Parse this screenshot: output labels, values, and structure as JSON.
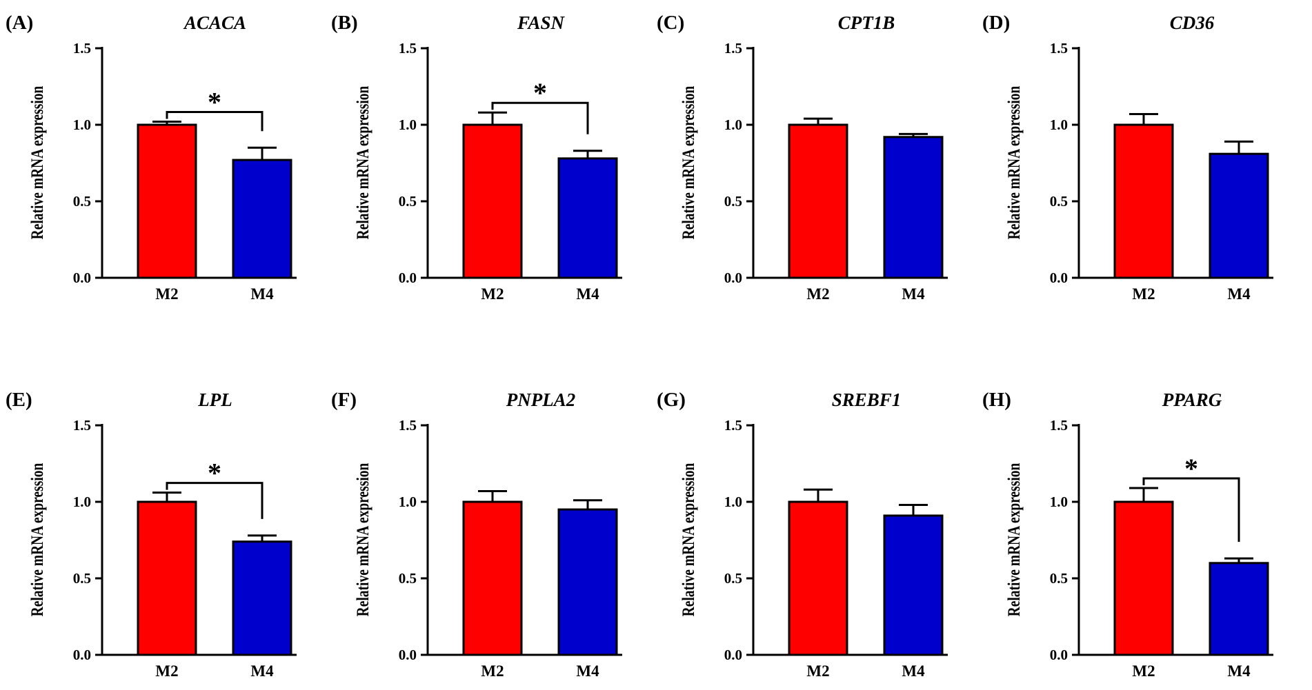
{
  "figure": {
    "ylabel": "Relative mRNA expression",
    "colors": {
      "M2": "#ff0000",
      "M4": "#0000cc",
      "axis": "#000000",
      "background": "#ffffff"
    }
  },
  "chart_data": [
    {
      "type": "bar",
      "panel": "(A)",
      "title": "ACACA",
      "xlabel": "",
      "ylabel": "Relative mRNA expression",
      "ylim": [
        0,
        1.5
      ],
      "yticks": [
        "0.0",
        "0.5",
        "1.0",
        "1.5"
      ],
      "categories": [
        "M2",
        "M4"
      ],
      "values": [
        1.0,
        0.77
      ],
      "errors": [
        0.02,
        0.08
      ],
      "significance": "*"
    },
    {
      "type": "bar",
      "panel": "(B)",
      "title": "FASN",
      "xlabel": "",
      "ylabel": "Relative mRNA expression",
      "ylim": [
        0,
        1.5
      ],
      "yticks": [
        "0.0",
        "0.5",
        "1.0",
        "1.5"
      ],
      "categories": [
        "M2",
        "M4"
      ],
      "values": [
        1.0,
        0.78
      ],
      "errors": [
        0.08,
        0.05
      ],
      "significance": "*"
    },
    {
      "type": "bar",
      "panel": "(C)",
      "title": "CPT1B",
      "xlabel": "",
      "ylabel": "Relative mRNA expression",
      "ylim": [
        0,
        1.5
      ],
      "yticks": [
        "0.0",
        "0.5",
        "1.0",
        "1.5"
      ],
      "categories": [
        "M2",
        "M4"
      ],
      "values": [
        1.0,
        0.92
      ],
      "errors": [
        0.04,
        0.02
      ],
      "significance": ""
    },
    {
      "type": "bar",
      "panel": "(D)",
      "title": "CD36",
      "xlabel": "",
      "ylabel": "Relative mRNA expression",
      "ylim": [
        0,
        1.5
      ],
      "yticks": [
        "0.0",
        "0.5",
        "1.0",
        "1.5"
      ],
      "categories": [
        "M2",
        "M4"
      ],
      "values": [
        1.0,
        0.81
      ],
      "errors": [
        0.07,
        0.08
      ],
      "significance": ""
    },
    {
      "type": "bar",
      "panel": "(E)",
      "title": "LPL",
      "xlabel": "",
      "ylabel": "Relative mRNA expression",
      "ylim": [
        0,
        1.5
      ],
      "yticks": [
        "0.0",
        "0.5",
        "1.0",
        "1.5"
      ],
      "categories": [
        "M2",
        "M4"
      ],
      "values": [
        1.0,
        0.74
      ],
      "errors": [
        0.06,
        0.04
      ],
      "significance": "*"
    },
    {
      "type": "bar",
      "panel": "(F)",
      "title": "PNPLA2",
      "xlabel": "",
      "ylabel": "Relative mRNA expression",
      "ylim": [
        0,
        1.5
      ],
      "yticks": [
        "0.0",
        "0.5",
        "1.0",
        "1.5"
      ],
      "categories": [
        "M2",
        "M4"
      ],
      "values": [
        1.0,
        0.95
      ],
      "errors": [
        0.07,
        0.06
      ],
      "significance": ""
    },
    {
      "type": "bar",
      "panel": "(G)",
      "title": "SREBF1",
      "xlabel": "",
      "ylabel": "Relative mRNA expression",
      "ylim": [
        0,
        1.5
      ],
      "yticks": [
        "0.0",
        "0.5",
        "1.0",
        "1.5"
      ],
      "categories": [
        "M2",
        "M4"
      ],
      "values": [
        1.0,
        0.91
      ],
      "errors": [
        0.08,
        0.07
      ],
      "significance": ""
    },
    {
      "type": "bar",
      "panel": "(H)",
      "title": "PPARG",
      "xlabel": "",
      "ylabel": "Relative mRNA expression",
      "ylim": [
        0,
        1.5
      ],
      "yticks": [
        "0.0",
        "0.5",
        "1.0",
        "1.5"
      ],
      "categories": [
        "M2",
        "M4"
      ],
      "values": [
        1.0,
        0.6
      ],
      "errors": [
        0.09,
        0.03
      ],
      "significance": "*"
    }
  ]
}
